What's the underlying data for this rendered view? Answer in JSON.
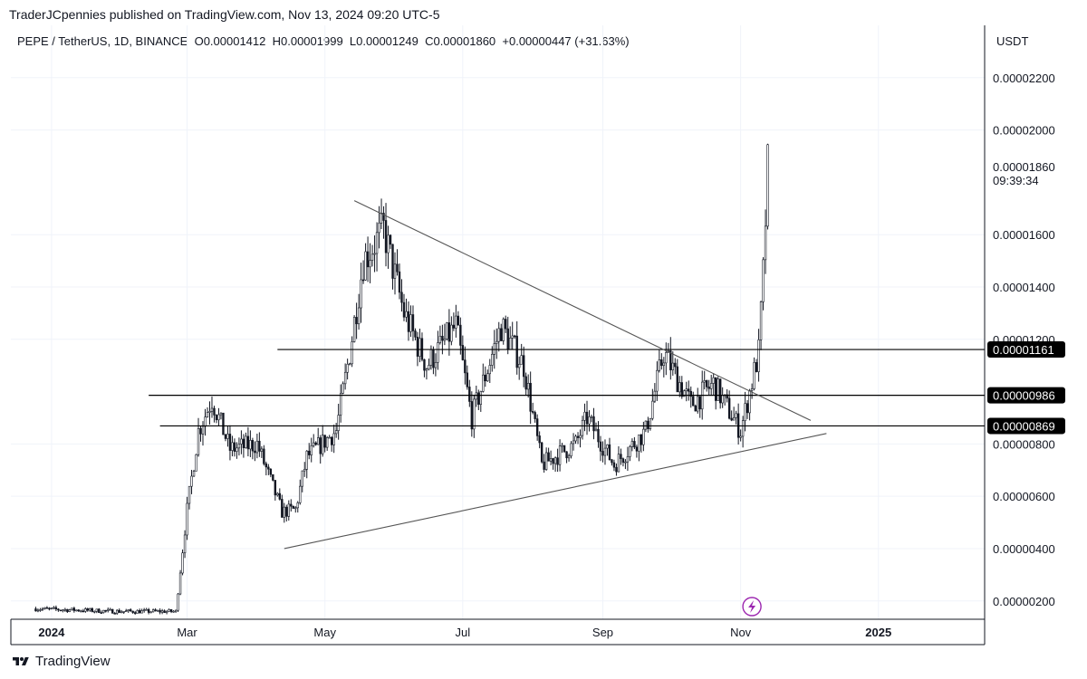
{
  "header": {
    "publisher_line": "TraderJCpennies published on TradingView.com, Nov 13, 2024 09:20 UTC-5"
  },
  "legend": {
    "symbol": "PEPE / TetherUS, 1D, BINANCE",
    "open": "O0.00001412",
    "high": "H0.00001999",
    "low": "L0.00001249",
    "close": "C0.00001860",
    "change": "+0.00000447 (+31.63%)"
  },
  "footer": {
    "brand": "TradingView"
  },
  "colors": {
    "candle": "#131722",
    "grid": "#f0f3fa",
    "axis": "#131722",
    "label_bg": "#000000",
    "label_text": "#ffffff",
    "lightning": "#9c27b0"
  },
  "chart_data": {
    "type": "candlestick",
    "title": "",
    "xlabel": "",
    "ylabel": "",
    "ylim": [
      1.3e-06,
      2.4e-05
    ],
    "currency_label": "USDT",
    "y_tick_labels": [
      "0.00000200",
      "0.00000400",
      "0.00000600",
      "0.00000800",
      "0.00001200",
      "0.00001400",
      "0.00001600",
      "0.00002000",
      "0.00002200"
    ],
    "y_tick_values": [
      2e-06,
      4e-06,
      6e-06,
      8e-06,
      1.2e-05,
      1.4e-05,
      1.6e-05,
      2e-05,
      2.2e-05
    ],
    "x_tick_labels": [
      "2024",
      "Mar",
      "May",
      "Jul",
      "Sep",
      "Nov",
      "2025"
    ],
    "x_tick_dates": [
      "2024-01-01",
      "2024-03-01",
      "2024-05-01",
      "2024-07-01",
      "2024-09-01",
      "2024-11-01",
      "2025-01-01"
    ],
    "xlim": [
      "2023-12-14",
      "2025-02-17"
    ],
    "last_price": {
      "value": 1.86e-05,
      "label": "0.00001860",
      "countdown": "09:39:34"
    },
    "horizontal_lines": [
      {
        "value": 1.161e-05,
        "label": "0.00001161",
        "start": "2024-04-10"
      },
      {
        "value": 9.86e-06,
        "label": "0.00000986",
        "start": "2024-02-13"
      },
      {
        "value": 8.69e-06,
        "label": "0.00000869",
        "start": "2024-02-18"
      }
    ],
    "trend_lines": [
      {
        "from": [
          "2024-05-14",
          1.73e-05
        ],
        "to": [
          "2024-12-02",
          8.9e-06
        ]
      },
      {
        "from": [
          "2024-04-13",
          4e-06
        ],
        "to": [
          "2024-12-09",
          8.4e-06
        ]
      }
    ],
    "anchors": [
      [
        "2023-12-25",
        1.7e-06
      ],
      [
        "2024-01-31",
        1.6e-06
      ],
      [
        "2024-02-25",
        1.6e-06
      ],
      [
        "2024-03-01",
        5.5e-06
      ],
      [
        "2024-03-06",
        8.5e-06
      ],
      [
        "2024-03-12",
        9.7e-06
      ],
      [
        "2024-03-20",
        7.8e-06
      ],
      [
        "2024-04-01",
        8e-06
      ],
      [
        "2024-04-12",
        5.4e-06
      ],
      [
        "2024-04-18",
        5.5e-06
      ],
      [
        "2024-04-23",
        7.5e-06
      ],
      [
        "2024-05-06",
        8.5e-06
      ],
      [
        "2024-05-12",
        1.15e-05
      ],
      [
        "2024-05-18",
        1.5e-05
      ],
      [
        "2024-05-27",
        1.62e-05
      ],
      [
        "2024-06-05",
        1.3e-05
      ],
      [
        "2024-06-15",
        1.1e-05
      ],
      [
        "2024-06-28",
        1.25e-05
      ],
      [
        "2024-07-05",
        9e-06
      ],
      [
        "2024-07-18",
        1.25e-05
      ],
      [
        "2024-07-28",
        1.1e-05
      ],
      [
        "2024-08-05",
        7.2e-06
      ],
      [
        "2024-08-20",
        8e-06
      ],
      [
        "2024-08-25",
        9e-06
      ],
      [
        "2024-09-06",
        7.2e-06
      ],
      [
        "2024-09-20",
        8.5e-06
      ],
      [
        "2024-09-28",
        1.15e-05
      ],
      [
        "2024-10-10",
        9.5e-06
      ],
      [
        "2024-10-20",
        1.03e-05
      ],
      [
        "2024-11-01",
        8.5e-06
      ],
      [
        "2024-11-05",
        1e-05
      ],
      [
        "2024-11-09",
        1.15e-05
      ],
      [
        "2024-11-11",
        1.45e-05
      ],
      [
        "2024-11-13",
        1.86e-05
      ]
    ]
  }
}
